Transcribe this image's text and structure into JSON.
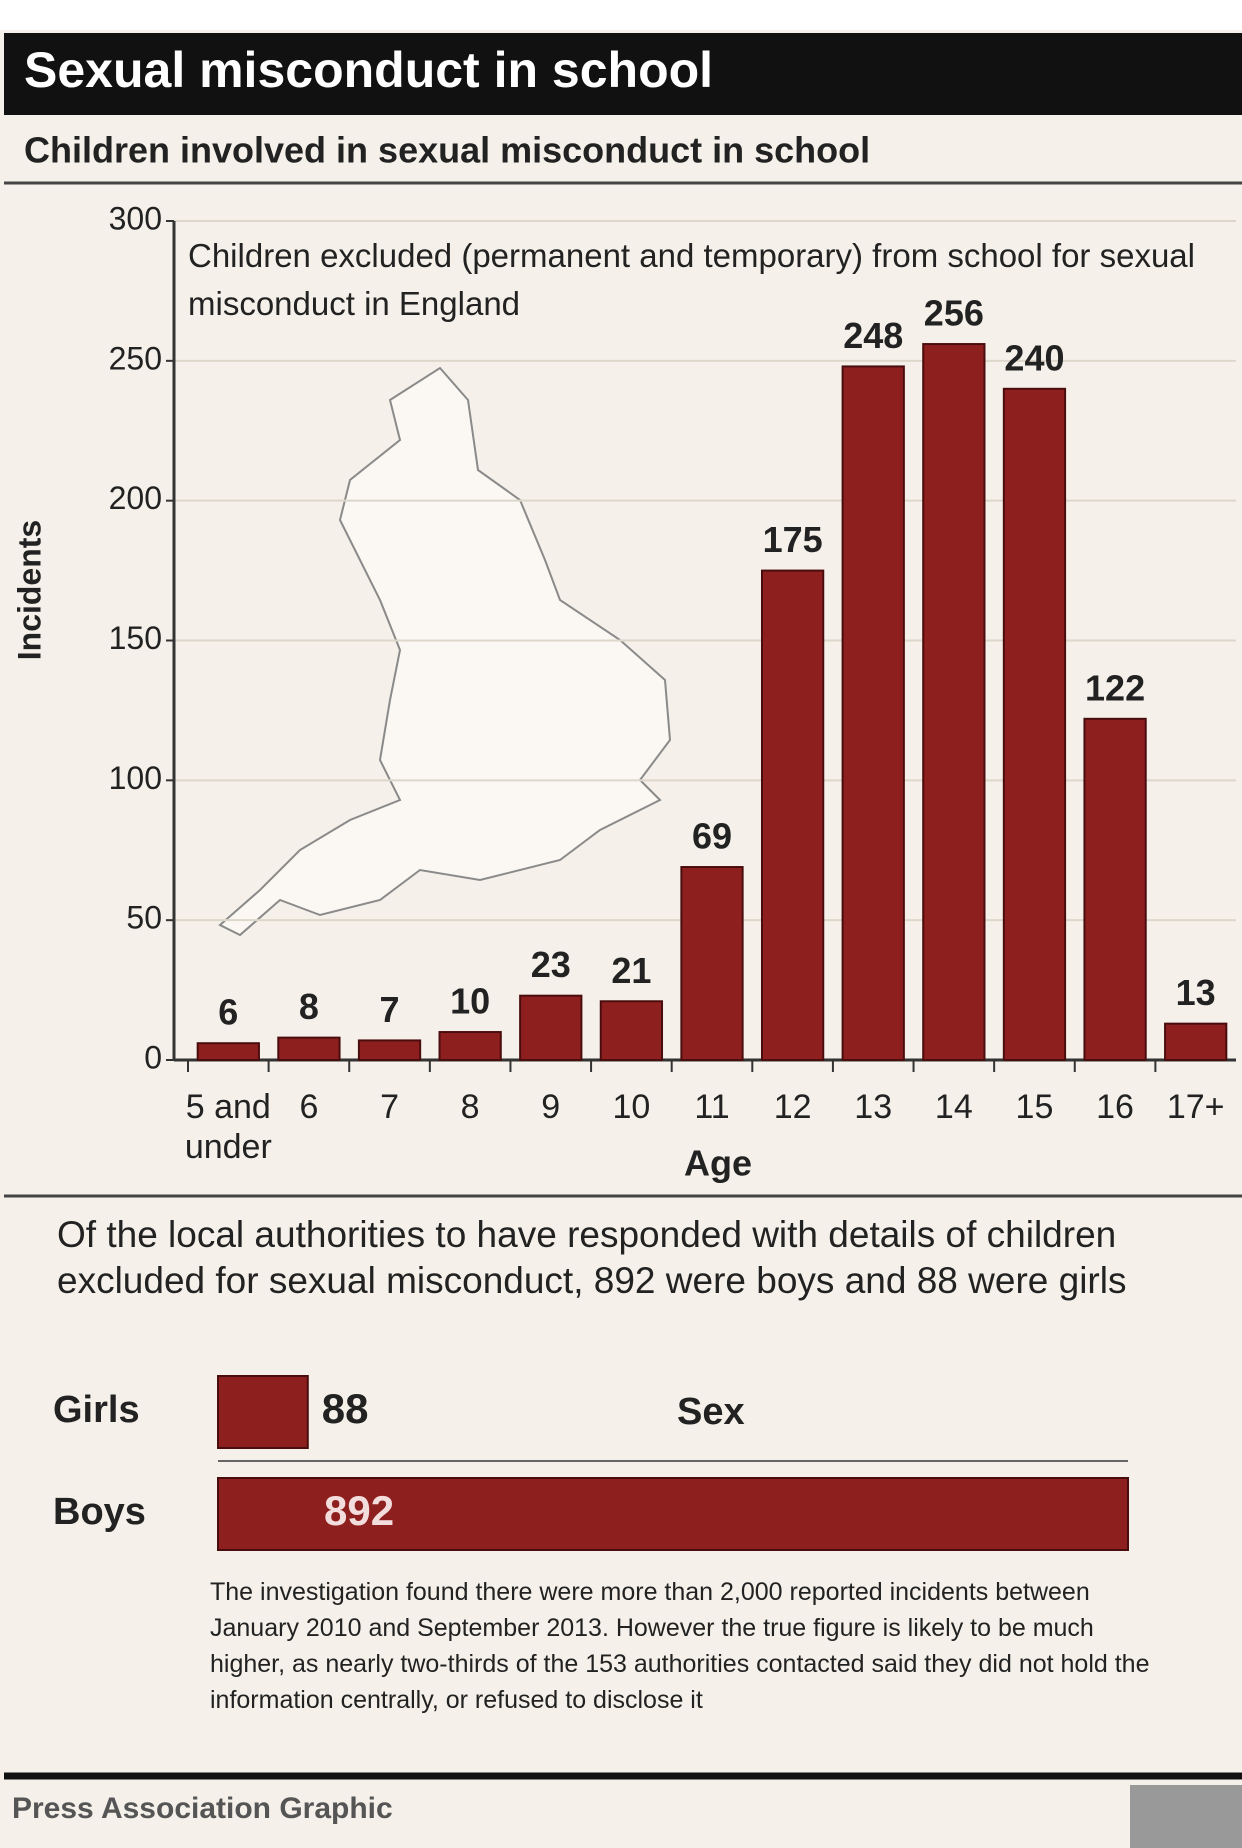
{
  "header": {
    "title": "Sexual misconduct in school",
    "subtitle": "Children involved in sexual misconduct in school"
  },
  "chart_data": [
    {
      "type": "bar",
      "annotation": "Children excluded (permanent and temporary) from school for sexual misconduct in England",
      "x_label": "Age",
      "y_label": "Incidents",
      "categories": [
        "5 and under",
        "6",
        "7",
        "8",
        "9",
        "10",
        "11",
        "12",
        "13",
        "14",
        "15",
        "16",
        "17+"
      ],
      "values": [
        6,
        8,
        7,
        10,
        23,
        21,
        69,
        175,
        248,
        256,
        240,
        122,
        13
      ],
      "color": "#8e1f1f",
      "ylim": [
        0,
        300
      ],
      "yticks": [
        0,
        50,
        100,
        150,
        200,
        250,
        300
      ],
      "grid": true
    },
    {
      "type": "hbar",
      "subtitle": "Of the local authorities to have responded with details of children excluded for sexual misconduct, 892 were boys and 88 were girls",
      "title": "Sex",
      "categories": [
        "Girls",
        "Boys"
      ],
      "values": [
        88,
        892
      ],
      "color": "#8e1f1f"
    }
  ],
  "note": "The investigation found there were more than 2,000 reported incidents between January 2010 and September 2013. However the true figure is likely to be much higher, as nearly two-thirds of the 153 authorities contacted said they did not hold the information centrally, or refused to disclose it",
  "footer": "Press Association Graphic"
}
